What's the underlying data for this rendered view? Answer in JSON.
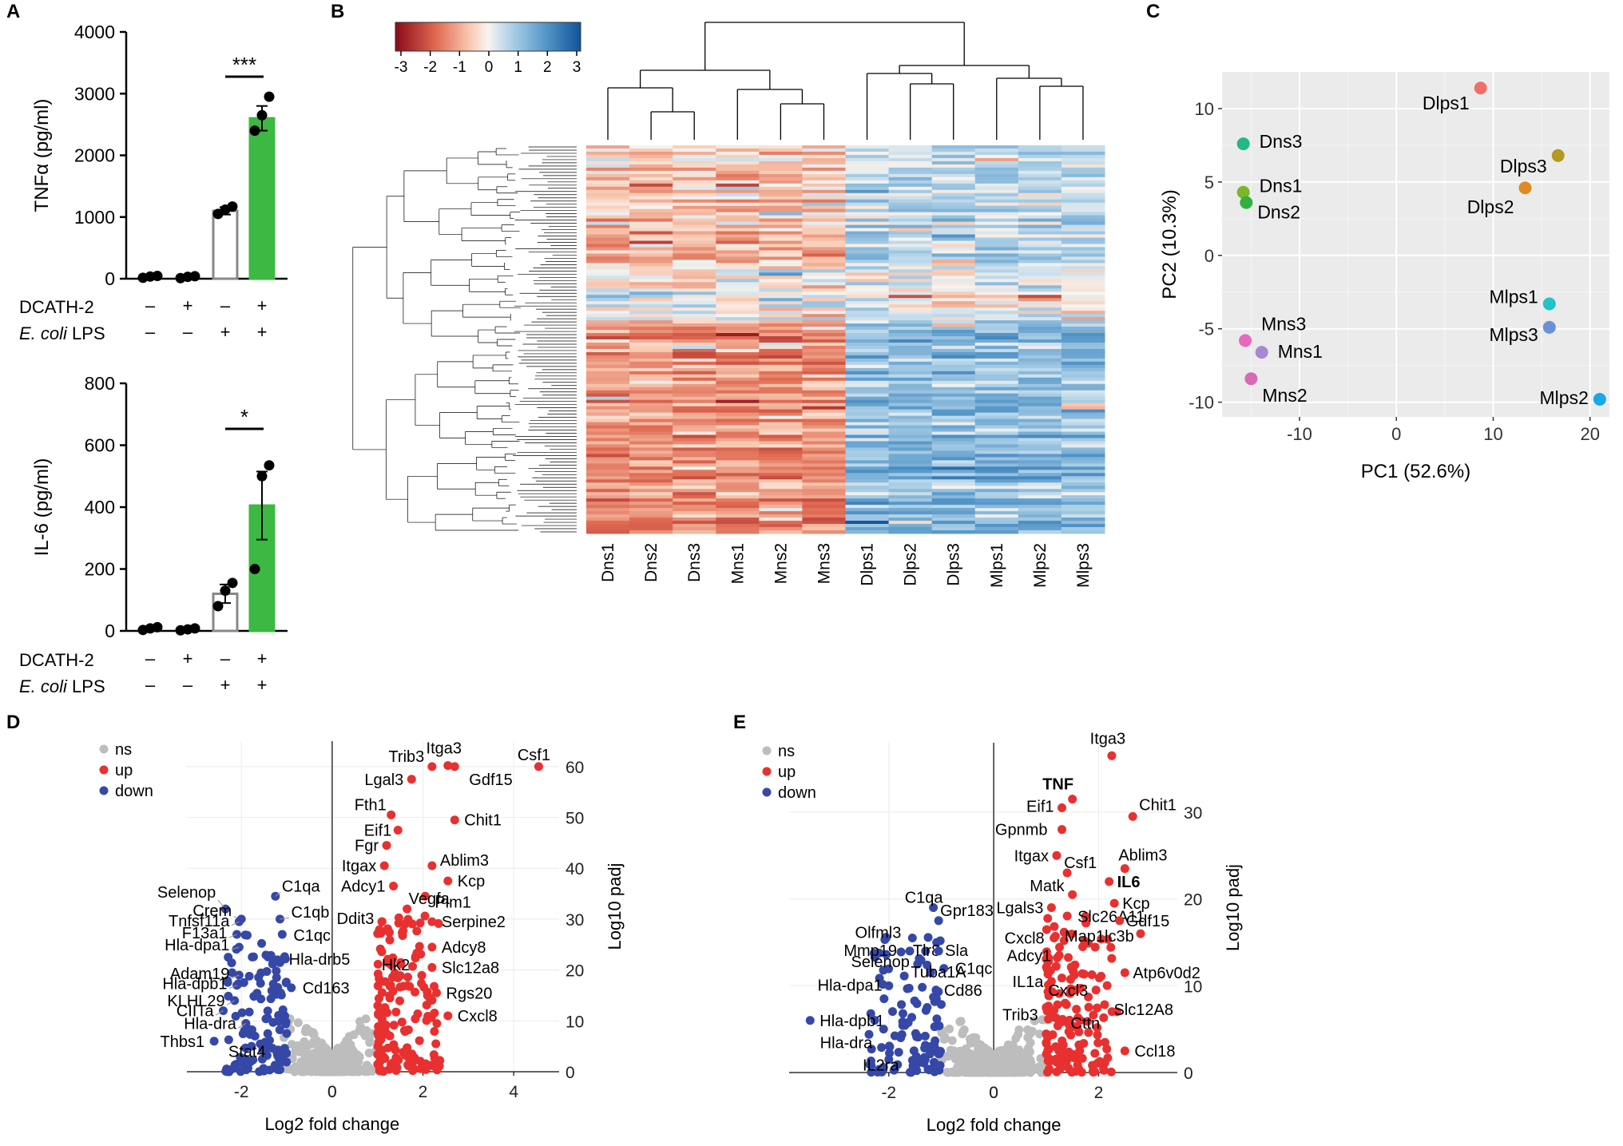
{
  "panel_letters": [
    "A",
    "B",
    "C",
    "D",
    "E"
  ],
  "chart_data": [
    {
      "id": "A_top",
      "type": "bar",
      "title": "",
      "xlabel": "",
      "ylabel": "TNFα (pg/ml)",
      "ylim": [
        0,
        4000
      ],
      "yticks": [
        "0",
        "1000",
        "2000",
        "3000",
        "4000"
      ],
      "values": [
        40,
        30,
        1100,
        2600
      ],
      "errors": [
        20,
        20,
        60,
        200
      ],
      "points": [
        [
          15,
          35,
          45
        ],
        [
          10,
          30,
          40
        ],
        [
          1050,
          1120,
          1170
        ],
        [
          2400,
          2650,
          2950
        ]
      ],
      "bar_colors": [
        "#ffffff",
        "#ffffff",
        "#ffffff",
        "#3cb843"
      ],
      "bar_edges": [
        "#888888",
        "#888888",
        "#888888",
        "#3cb843"
      ],
      "significance": "***",
      "row_labels": [
        "DCATH-2",
        "E. coli LPS"
      ],
      "dcath": [
        "–",
        "+",
        "–",
        "+"
      ],
      "lps": [
        "–",
        "–",
        "+",
        "+"
      ]
    },
    {
      "id": "A_bottom",
      "type": "bar",
      "title": "",
      "xlabel": "",
      "ylabel": "IL-6 (pg/ml)",
      "ylim": [
        0,
        800
      ],
      "yticks": [
        "0",
        "200",
        "400",
        "600",
        "800"
      ],
      "values": [
        8,
        5,
        120,
        405
      ],
      "errors": [
        5,
        5,
        30,
        110
      ],
      "points": [
        [
          3,
          8,
          12
        ],
        [
          2,
          5,
          8
        ],
        [
          80,
          130,
          155
        ],
        [
          200,
          500,
          535
        ]
      ],
      "bar_colors": [
        "#ffffff",
        "#ffffff",
        "#ffffff",
        "#3cb843"
      ],
      "bar_edges": [
        "#888888",
        "#888888",
        "#888888",
        "#3cb843"
      ],
      "significance": "*",
      "row_labels": [
        "DCATH-2",
        "E. coli LPS"
      ],
      "dcath": [
        "–",
        "+",
        "–",
        "+"
      ],
      "lps": [
        "–",
        "–",
        "+",
        "+"
      ]
    },
    {
      "id": "B",
      "type": "heatmap",
      "title": "",
      "columns": [
        "Dns1",
        "Dns2",
        "Dns3",
        "Mns1",
        "Mns2",
        "Mns3",
        "Dlps1",
        "Dlps2",
        "Dlps3",
        "Mlps1",
        "Mlps2",
        "Mlps3"
      ],
      "scale_range": [
        -3,
        3
      ],
      "scale_ticks": [
        "-3",
        "-2",
        "-1",
        "0",
        "1",
        "2",
        "3"
      ],
      "scale_colors": [
        "#8b0a1a",
        "#f5a07a",
        "#f7f4f0",
        "#9cc8e2",
        "#10549a"
      ]
    },
    {
      "id": "C",
      "type": "scatter",
      "title": "",
      "xlabel": "PC1 (52.6%)",
      "ylabel": "PC2 (10.3%)",
      "xlim": [
        -18,
        22
      ],
      "ylim": [
        -11,
        12.5
      ],
      "xticks": [
        "-10",
        "0",
        "10",
        "20"
      ],
      "yticks": [
        "-10",
        "-5",
        "0",
        "5",
        "10"
      ],
      "points": [
        {
          "label": "Dlps1",
          "x": 8.7,
          "y": 11.4,
          "color": "#f07068"
        },
        {
          "label": "Dlps3",
          "x": 16.7,
          "y": 6.8,
          "color": "#b09a22"
        },
        {
          "label": "Dlps2",
          "x": 13.3,
          "y": 4.6,
          "color": "#e08a22"
        },
        {
          "label": "Dns3",
          "x": -15.8,
          "y": 7.6,
          "color": "#22b888"
        },
        {
          "label": "Dns1",
          "x": -15.8,
          "y": 4.3,
          "color": "#7ab828"
        },
        {
          "label": "Dns2",
          "x": -15.5,
          "y": 3.6,
          "color": "#30b040"
        },
        {
          "label": "Mlps1",
          "x": 15.8,
          "y": -3.3,
          "color": "#22c2c8"
        },
        {
          "label": "Mlps3",
          "x": 15.8,
          "y": -4.9,
          "color": "#6a90d8"
        },
        {
          "label": "Mlps2",
          "x": 21.0,
          "y": -9.8,
          "color": "#18a8e8"
        },
        {
          "label": "Mns3",
          "x": -15.6,
          "y": -5.8,
          "color": "#e868c0"
        },
        {
          "label": "Mns1",
          "x": -13.9,
          "y": -6.6,
          "color": "#a888d0"
        },
        {
          "label": "Mns2",
          "x": -15.0,
          "y": -8.4,
          "color": "#d868b8"
        }
      ]
    },
    {
      "id": "D",
      "type": "scatter",
      "title": "",
      "xlabel": "Log2 fold change",
      "ylabel": "Log10 padj",
      "xlim": [
        -3.2,
        5
      ],
      "ylim": [
        0,
        65
      ],
      "xticks": [
        "-2",
        "0",
        "2",
        "4"
      ],
      "yticks": [
        "0",
        "10",
        "20",
        "30",
        "40",
        "50",
        "60"
      ],
      "legend": [
        "ns",
        "up",
        "down"
      ],
      "legend_colors": [
        "#bdbdbd",
        "#e83030",
        "#3548a8"
      ],
      "labeled_points": [
        {
          "label": "Csf1",
          "x": 4.55,
          "y": 60,
          "class": "up"
        },
        {
          "label": "Itga3",
          "x": 2.55,
          "y": 60.2,
          "class": "up"
        },
        {
          "label": "Trib3",
          "x": 2.2,
          "y": 60,
          "class": "up"
        },
        {
          "label": "Gdf15",
          "x": 2.7,
          "y": 60,
          "class": "up"
        },
        {
          "label": "Lgal3",
          "x": 1.75,
          "y": 57.5,
          "class": "up"
        },
        {
          "label": "Chit1",
          "x": 2.7,
          "y": 49.5,
          "class": "up"
        },
        {
          "label": "Fth1",
          "x": 1.3,
          "y": 50.5,
          "class": "up"
        },
        {
          "label": "Eif1",
          "x": 1.45,
          "y": 47.5,
          "class": "up"
        },
        {
          "label": "Fgr",
          "x": 1.2,
          "y": 44.5,
          "class": "up"
        },
        {
          "label": "Ablim3",
          "x": 2.2,
          "y": 40.5,
          "class": "up"
        },
        {
          "label": "Itgax",
          "x": 1.15,
          "y": 40.5,
          "class": "up"
        },
        {
          "label": "Kcp",
          "x": 2.55,
          "y": 37.5,
          "class": "up"
        },
        {
          "label": "Adcy1",
          "x": 1.35,
          "y": 36.5,
          "class": "up"
        },
        {
          "label": "Pim1",
          "x": 2.05,
          "y": 34.5,
          "class": "up"
        },
        {
          "label": "Vegfa",
          "x": 1.65,
          "y": 32,
          "class": "up"
        },
        {
          "label": "Serpine2",
          "x": 2.2,
          "y": 29.5,
          "class": "up"
        },
        {
          "label": "Ddit3",
          "x": 1.1,
          "y": 29.5,
          "class": "up"
        },
        {
          "label": "Adcy8",
          "x": 2.2,
          "y": 24.5,
          "class": "up"
        },
        {
          "label": "Slc12a8",
          "x": 2.2,
          "y": 20.5,
          "class": "up"
        },
        {
          "label": "Hk2",
          "x": 1.3,
          "y": 21,
          "class": "up"
        },
        {
          "label": "Rgs20",
          "x": 2.3,
          "y": 15.5,
          "class": "up"
        },
        {
          "label": "Cxcl8",
          "x": 2.55,
          "y": 11,
          "class": "up"
        },
        {
          "label": "C1qa",
          "x": -1.25,
          "y": 34.5,
          "class": "down"
        },
        {
          "label": "Selenop",
          "x": -2.35,
          "y": 32,
          "class": "down"
        },
        {
          "label": "C1qb",
          "x": -1.15,
          "y": 30,
          "class": "down"
        },
        {
          "label": "Crem",
          "x": -2.0,
          "y": 30,
          "class": "down"
        },
        {
          "label": "Tnfsf11a",
          "x": -2.05,
          "y": 29.5,
          "class": "down"
        },
        {
          "label": "F13a1",
          "x": -2.1,
          "y": 27,
          "class": "down"
        },
        {
          "label": "C1qc",
          "x": -1.1,
          "y": 27,
          "class": "down"
        },
        {
          "label": "Hla-dpa1",
          "x": -2.05,
          "y": 24.5,
          "class": "down"
        },
        {
          "label": "Hla-drb5",
          "x": -1.2,
          "y": 22,
          "class": "down"
        },
        {
          "label": "Adam19",
          "x": -2.05,
          "y": 19,
          "class": "down"
        },
        {
          "label": "Hla-dpb1",
          "x": -2.1,
          "y": 17,
          "class": "down"
        },
        {
          "label": "Cd163",
          "x": -0.9,
          "y": 16.5,
          "class": "down"
        },
        {
          "label": "KLHL29",
          "x": -2.15,
          "y": 14,
          "class": "down"
        },
        {
          "label": "CIITa",
          "x": -2.4,
          "y": 12,
          "class": "down"
        },
        {
          "label": "Hla-dra",
          "x": -1.9,
          "y": 9.5,
          "class": "down"
        },
        {
          "label": "Thbs1",
          "x": -2.6,
          "y": 6,
          "class": "down"
        },
        {
          "label": "Stat4",
          "x": -1.7,
          "y": 7,
          "class": "down"
        }
      ]
    },
    {
      "id": "E",
      "type": "scatter",
      "title": "",
      "xlabel": "Log2 fold change",
      "ylabel": "Log10 padj",
      "xlim": [
        -3.9,
        3.5
      ],
      "ylim": [
        0,
        38
      ],
      "xticks": [
        "-2",
        "0",
        "2"
      ],
      "yticks": [
        "0",
        "10",
        "20",
        "30"
      ],
      "legend": [
        "ns",
        "up",
        "down"
      ],
      "legend_colors": [
        "#bdbdbd",
        "#e83030",
        "#3548a8"
      ],
      "labeled_points": [
        {
          "label": "Itga3",
          "x": 2.25,
          "y": 36.5,
          "class": "up"
        },
        {
          "label": "TNF",
          "x": 1.5,
          "y": 31.5,
          "class": "up",
          "bold": true
        },
        {
          "label": "Chit1",
          "x": 2.65,
          "y": 29.5,
          "class": "up"
        },
        {
          "label": "Eif1",
          "x": 1.3,
          "y": 30.5,
          "class": "up"
        },
        {
          "label": "Gpnmb",
          "x": 1.3,
          "y": 28,
          "class": "up"
        },
        {
          "label": "Itgax",
          "x": 1.2,
          "y": 25,
          "class": "up"
        },
        {
          "label": "Ablim3",
          "x": 2.5,
          "y": 23.5,
          "class": "up"
        },
        {
          "label": "Csf1",
          "x": 1.4,
          "y": 23,
          "class": "up"
        },
        {
          "label": "IL6",
          "x": 2.2,
          "y": 22,
          "class": "up",
          "bold": true
        },
        {
          "label": "Matk",
          "x": 1.5,
          "y": 20.5,
          "class": "up"
        },
        {
          "label": "Kcp",
          "x": 2.3,
          "y": 19.5,
          "class": "up"
        },
        {
          "label": "Lgals3",
          "x": 1.1,
          "y": 19,
          "class": "up"
        },
        {
          "label": "Slc26A11",
          "x": 1.75,
          "y": 18,
          "class": "up"
        },
        {
          "label": "Gdf15",
          "x": 2.4,
          "y": 17.5,
          "class": "up"
        },
        {
          "label": "Cxcl8",
          "x": 1.15,
          "y": 15.5,
          "class": "up"
        },
        {
          "label": "Map1lc3b",
          "x": 2.8,
          "y": 16,
          "class": "up"
        },
        {
          "label": "Adcy1",
          "x": 1.25,
          "y": 13.5,
          "class": "up"
        },
        {
          "label": "Atp6v0d2",
          "x": 2.5,
          "y": 11.5,
          "class": "up"
        },
        {
          "label": "IL1a",
          "x": 1.1,
          "y": 10.5,
          "class": "up"
        },
        {
          "label": "Cxcl3",
          "x": 1.95,
          "y": 9.5,
          "class": "up"
        },
        {
          "label": "Trib3",
          "x": 1.0,
          "y": 7.5,
          "class": "up"
        },
        {
          "label": "Slc12A8",
          "x": 2.35,
          "y": 7,
          "class": "up"
        },
        {
          "label": "Cttn",
          "x": 1.65,
          "y": 6,
          "class": "up"
        },
        {
          "label": "Ccl18",
          "x": 2.5,
          "y": 2.5,
          "class": "up"
        },
        {
          "label": "C1qa",
          "x": -1.15,
          "y": 19,
          "class": "down"
        },
        {
          "label": "Gpr183",
          "x": -1.05,
          "y": 17.5,
          "class": "down"
        },
        {
          "label": "Olfml3",
          "x": -1.55,
          "y": 15.5,
          "class": "down"
        },
        {
          "label": "Mmp19",
          "x": -1.6,
          "y": 14,
          "class": "down"
        },
        {
          "label": "Tlr8",
          "x": -1.3,
          "y": 14,
          "class": "down"
        },
        {
          "label": "Sla",
          "x": -1.05,
          "y": 14,
          "class": "down"
        },
        {
          "label": "Selenop",
          "x": -1.45,
          "y": 12.5,
          "class": "down"
        },
        {
          "label": "C1qc",
          "x": -0.95,
          "y": 12,
          "class": "down"
        },
        {
          "label": "Tuba1A",
          "x": -1.2,
          "y": 11.5,
          "class": "down"
        },
        {
          "label": "Hla-dpa1",
          "x": -2.0,
          "y": 10,
          "class": "down"
        },
        {
          "label": "Cd86",
          "x": -1.1,
          "y": 9.5,
          "class": "down"
        },
        {
          "label": "Hla-dpb1",
          "x": -3.5,
          "y": 6,
          "class": "down"
        },
        {
          "label": "Hla-dra",
          "x": -2.1,
          "y": 5,
          "class": "down"
        },
        {
          "label": "IL2ra",
          "x": -2.0,
          "y": 1.5,
          "class": "down"
        }
      ]
    }
  ]
}
